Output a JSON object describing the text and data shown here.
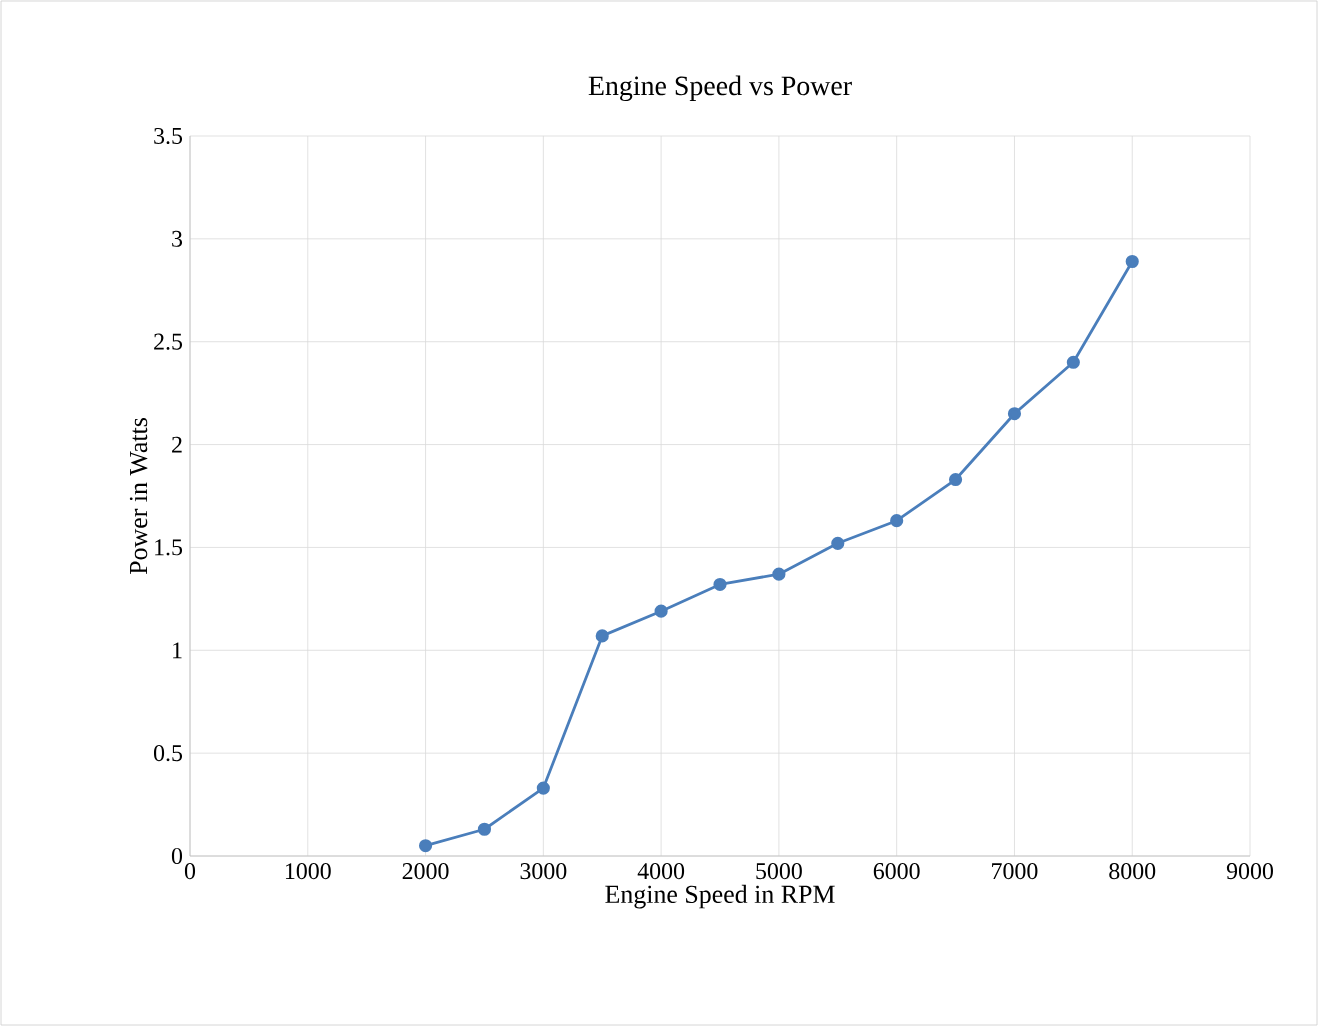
{
  "chart_data": {
    "type": "line",
    "title": "Engine Speed vs Power",
    "xlabel": "Engine Speed in RPM",
    "ylabel": "Power in Watts",
    "x": [
      2000,
      2500,
      3000,
      3500,
      4000,
      4500,
      5000,
      5500,
      6000,
      6500,
      7000,
      7500,
      8000
    ],
    "series": [
      {
        "color": "#4a7ebb",
        "values": [
          0.05,
          0.13,
          0.33,
          1.07,
          1.19,
          1.32,
          1.37,
          1.52,
          1.63,
          1.83,
          2.15,
          2.4,
          2.89
        ]
      }
    ],
    "xlim": [
      0,
      9000
    ],
    "xticks": [
      0,
      1000,
      2000,
      3000,
      4000,
      5000,
      6000,
      7000,
      8000,
      9000
    ],
    "ylim": [
      0,
      3.5
    ],
    "yticks": [
      0,
      {
        "value": 0.5,
        "label": "0.5"
      },
      1,
      1.5,
      2,
      2.5,
      3,
      3.5
    ],
    "grid": true,
    "marker": "circle"
  }
}
